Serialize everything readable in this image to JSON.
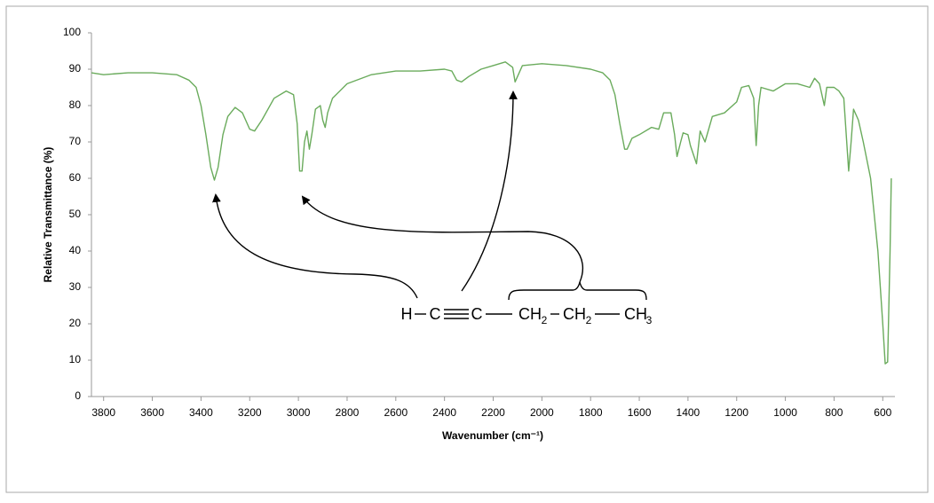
{
  "chart_data": {
    "type": "line",
    "xlabel": "Wavenumber (cm⁻¹)",
    "ylabel": "Relative Transmittance (%)",
    "x": [
      3850,
      3800,
      3700,
      3600,
      3500,
      3450,
      3420,
      3400,
      3380,
      3360,
      3345,
      3330,
      3310,
      3290,
      3260,
      3230,
      3200,
      3180,
      3150,
      3100,
      3050,
      3020,
      3005,
      2995,
      2985,
      2975,
      2965,
      2955,
      2945,
      2930,
      2910,
      2900,
      2890,
      2880,
      2860,
      2800,
      2700,
      2600,
      2500,
      2400,
      2370,
      2350,
      2330,
      2300,
      2250,
      2200,
      2150,
      2120,
      2110,
      2100,
      2080,
      2000,
      1900,
      1800,
      1750,
      1720,
      1700,
      1680,
      1660,
      1650,
      1630,
      1600,
      1550,
      1520,
      1500,
      1470,
      1455,
      1445,
      1430,
      1420,
      1400,
      1390,
      1375,
      1365,
      1350,
      1330,
      1300,
      1250,
      1200,
      1180,
      1150,
      1130,
      1120,
      1110,
      1100,
      1050,
      1000,
      950,
      900,
      880,
      860,
      840,
      830,
      800,
      780,
      760,
      740,
      730,
      720,
      700,
      680,
      650,
      620,
      600,
      590,
      580,
      570,
      565
    ],
    "values": [
      89,
      88.5,
      89,
      89,
      88.5,
      87,
      85,
      80,
      72,
      63,
      59.5,
      63,
      72,
      77,
      79.5,
      78,
      73.5,
      73,
      76,
      82,
      84,
      83,
      75,
      62,
      62,
      70,
      73,
      68,
      72,
      79,
      80,
      76,
      74,
      78,
      82,
      86,
      88.5,
      89.5,
      89.5,
      90,
      89.5,
      87,
      86.5,
      88,
      90,
      91,
      92,
      90.5,
      86.5,
      88,
      91,
      91.5,
      91,
      90,
      89,
      87,
      83,
      75,
      68,
      68,
      71,
      72,
      74,
      73.5,
      78,
      78,
      72,
      66,
      70,
      72.5,
      72,
      69,
      66,
      64,
      73,
      70,
      77,
      78,
      81,
      85,
      85.5,
      82,
      69,
      80,
      85,
      84,
      86,
      86,
      85,
      87.5,
      86,
      80,
      85,
      85,
      84,
      82,
      62,
      70,
      79,
      76,
      70,
      60,
      40,
      20,
      9,
      9.5,
      40,
      60
    ],
    "color": "#6aab5c",
    "xlim": [
      3850,
      550
    ],
    "xticks": [
      3800,
      3600,
      3400,
      3200,
      3000,
      2800,
      2600,
      2400,
      2200,
      2000,
      1800,
      1600,
      1400,
      1200,
      1000,
      800,
      600
    ],
    "ylim": [
      0,
      100
    ],
    "yticks": [
      0,
      10,
      20,
      30,
      40,
      50,
      60,
      70,
      80,
      90,
      100
    ],
    "annotations": [
      "H",
      "C",
      "C",
      "CH",
      "2",
      "CH",
      "2",
      "CH",
      "3"
    ]
  }
}
